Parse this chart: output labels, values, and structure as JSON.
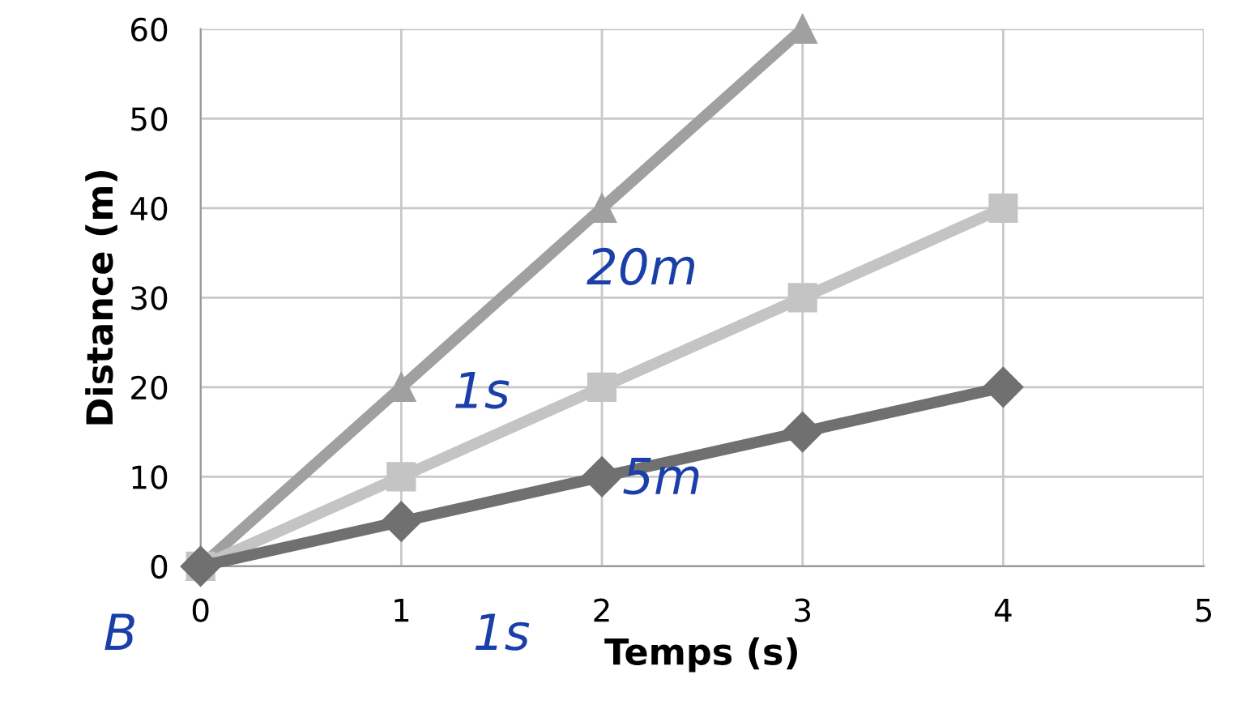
{
  "chart_data": {
    "type": "line",
    "xlabel": "Temps (s)",
    "ylabel": "Distance (m)",
    "series": [
      {
        "color": "#a0a0a0",
        "marker": "triangle",
        "x": [
          0,
          1,
          2,
          3
        ],
        "values": [
          0,
          20,
          40,
          60
        ]
      },
      {
        "color": "#c4c4c4",
        "marker": "square",
        "x": [
          0,
          1,
          2,
          3,
          4
        ],
        "values": [
          0,
          10,
          20,
          30,
          40
        ]
      },
      {
        "color": "#707070",
        "marker": "diamond",
        "x": [
          0,
          1,
          2,
          3,
          4
        ],
        "values": [
          0,
          5,
          10,
          15,
          20
        ]
      }
    ],
    "xlim": [
      0,
      5
    ],
    "xticks": [
      0,
      1,
      2,
      3,
      4,
      5
    ],
    "ylim": [
      0,
      60
    ],
    "yticks": [
      0,
      10,
      20,
      30,
      40,
      50,
      60
    ],
    "grid": true,
    "line_style": "solid",
    "annotations": [
      "20m",
      "1s",
      "5m",
      "1s",
      "B"
    ]
  }
}
